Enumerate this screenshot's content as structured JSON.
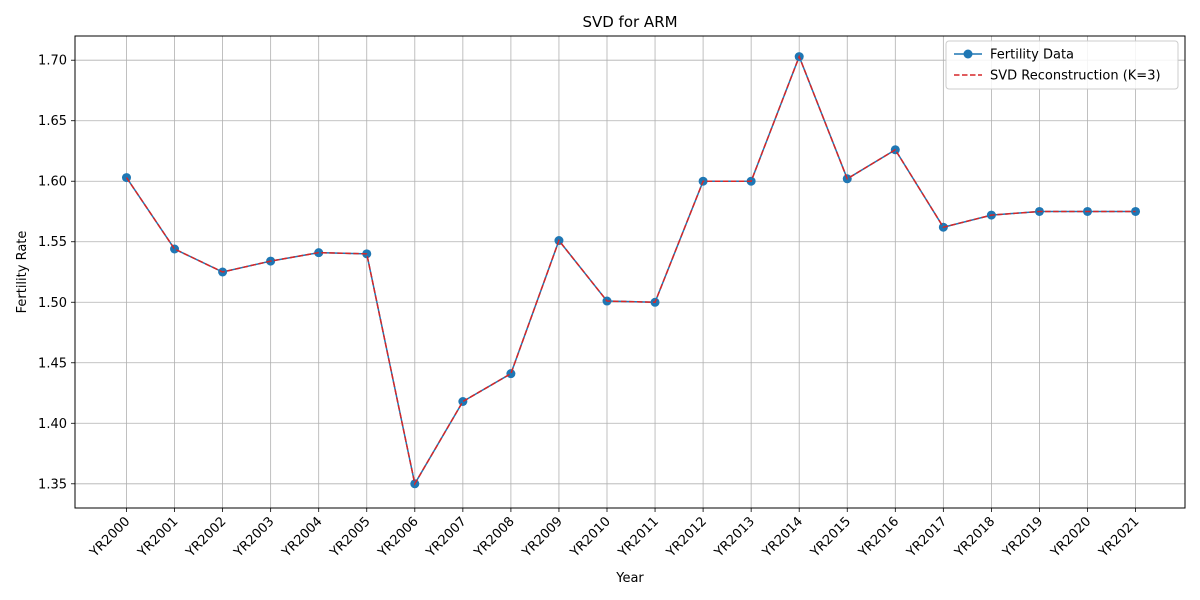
{
  "chart_data": {
    "type": "line",
    "title": "SVD for ARM",
    "xlabel": "Year",
    "ylabel": "Fertility Rate",
    "categories": [
      "YR2000",
      "YR2001",
      "YR2002",
      "YR2003",
      "YR2004",
      "YR2005",
      "YR2006",
      "YR2007",
      "YR2008",
      "YR2009",
      "YR2010",
      "YR2011",
      "YR2012",
      "YR2013",
      "YR2014",
      "YR2015",
      "YR2016",
      "YR2017",
      "YR2018",
      "YR2019",
      "YR2020",
      "YR2021"
    ],
    "ylim": [
      1.33,
      1.72
    ],
    "yticks": [
      "1.35",
      "1.40",
      "1.45",
      "1.50",
      "1.55",
      "1.60",
      "1.65",
      "1.70"
    ],
    "grid": true,
    "legend_position": "top-right",
    "series": [
      {
        "name": "Fertility Data",
        "color": "#1f77b4",
        "style": "solid-with-markers",
        "values": [
          1.603,
          1.544,
          1.525,
          1.534,
          1.541,
          1.54,
          1.35,
          1.418,
          1.441,
          1.551,
          1.501,
          1.5,
          1.6,
          1.6,
          1.703,
          1.602,
          1.626,
          1.562,
          1.572,
          1.575,
          1.575,
          1.575
        ]
      },
      {
        "name": "SVD Reconstruction (K=3)",
        "color": "#d62728",
        "style": "dashed",
        "values": [
          1.603,
          1.544,
          1.525,
          1.534,
          1.541,
          1.54,
          1.35,
          1.418,
          1.441,
          1.551,
          1.501,
          1.5,
          1.6,
          1.6,
          1.703,
          1.602,
          1.626,
          1.562,
          1.572,
          1.575,
          1.575,
          1.575
        ]
      }
    ]
  }
}
